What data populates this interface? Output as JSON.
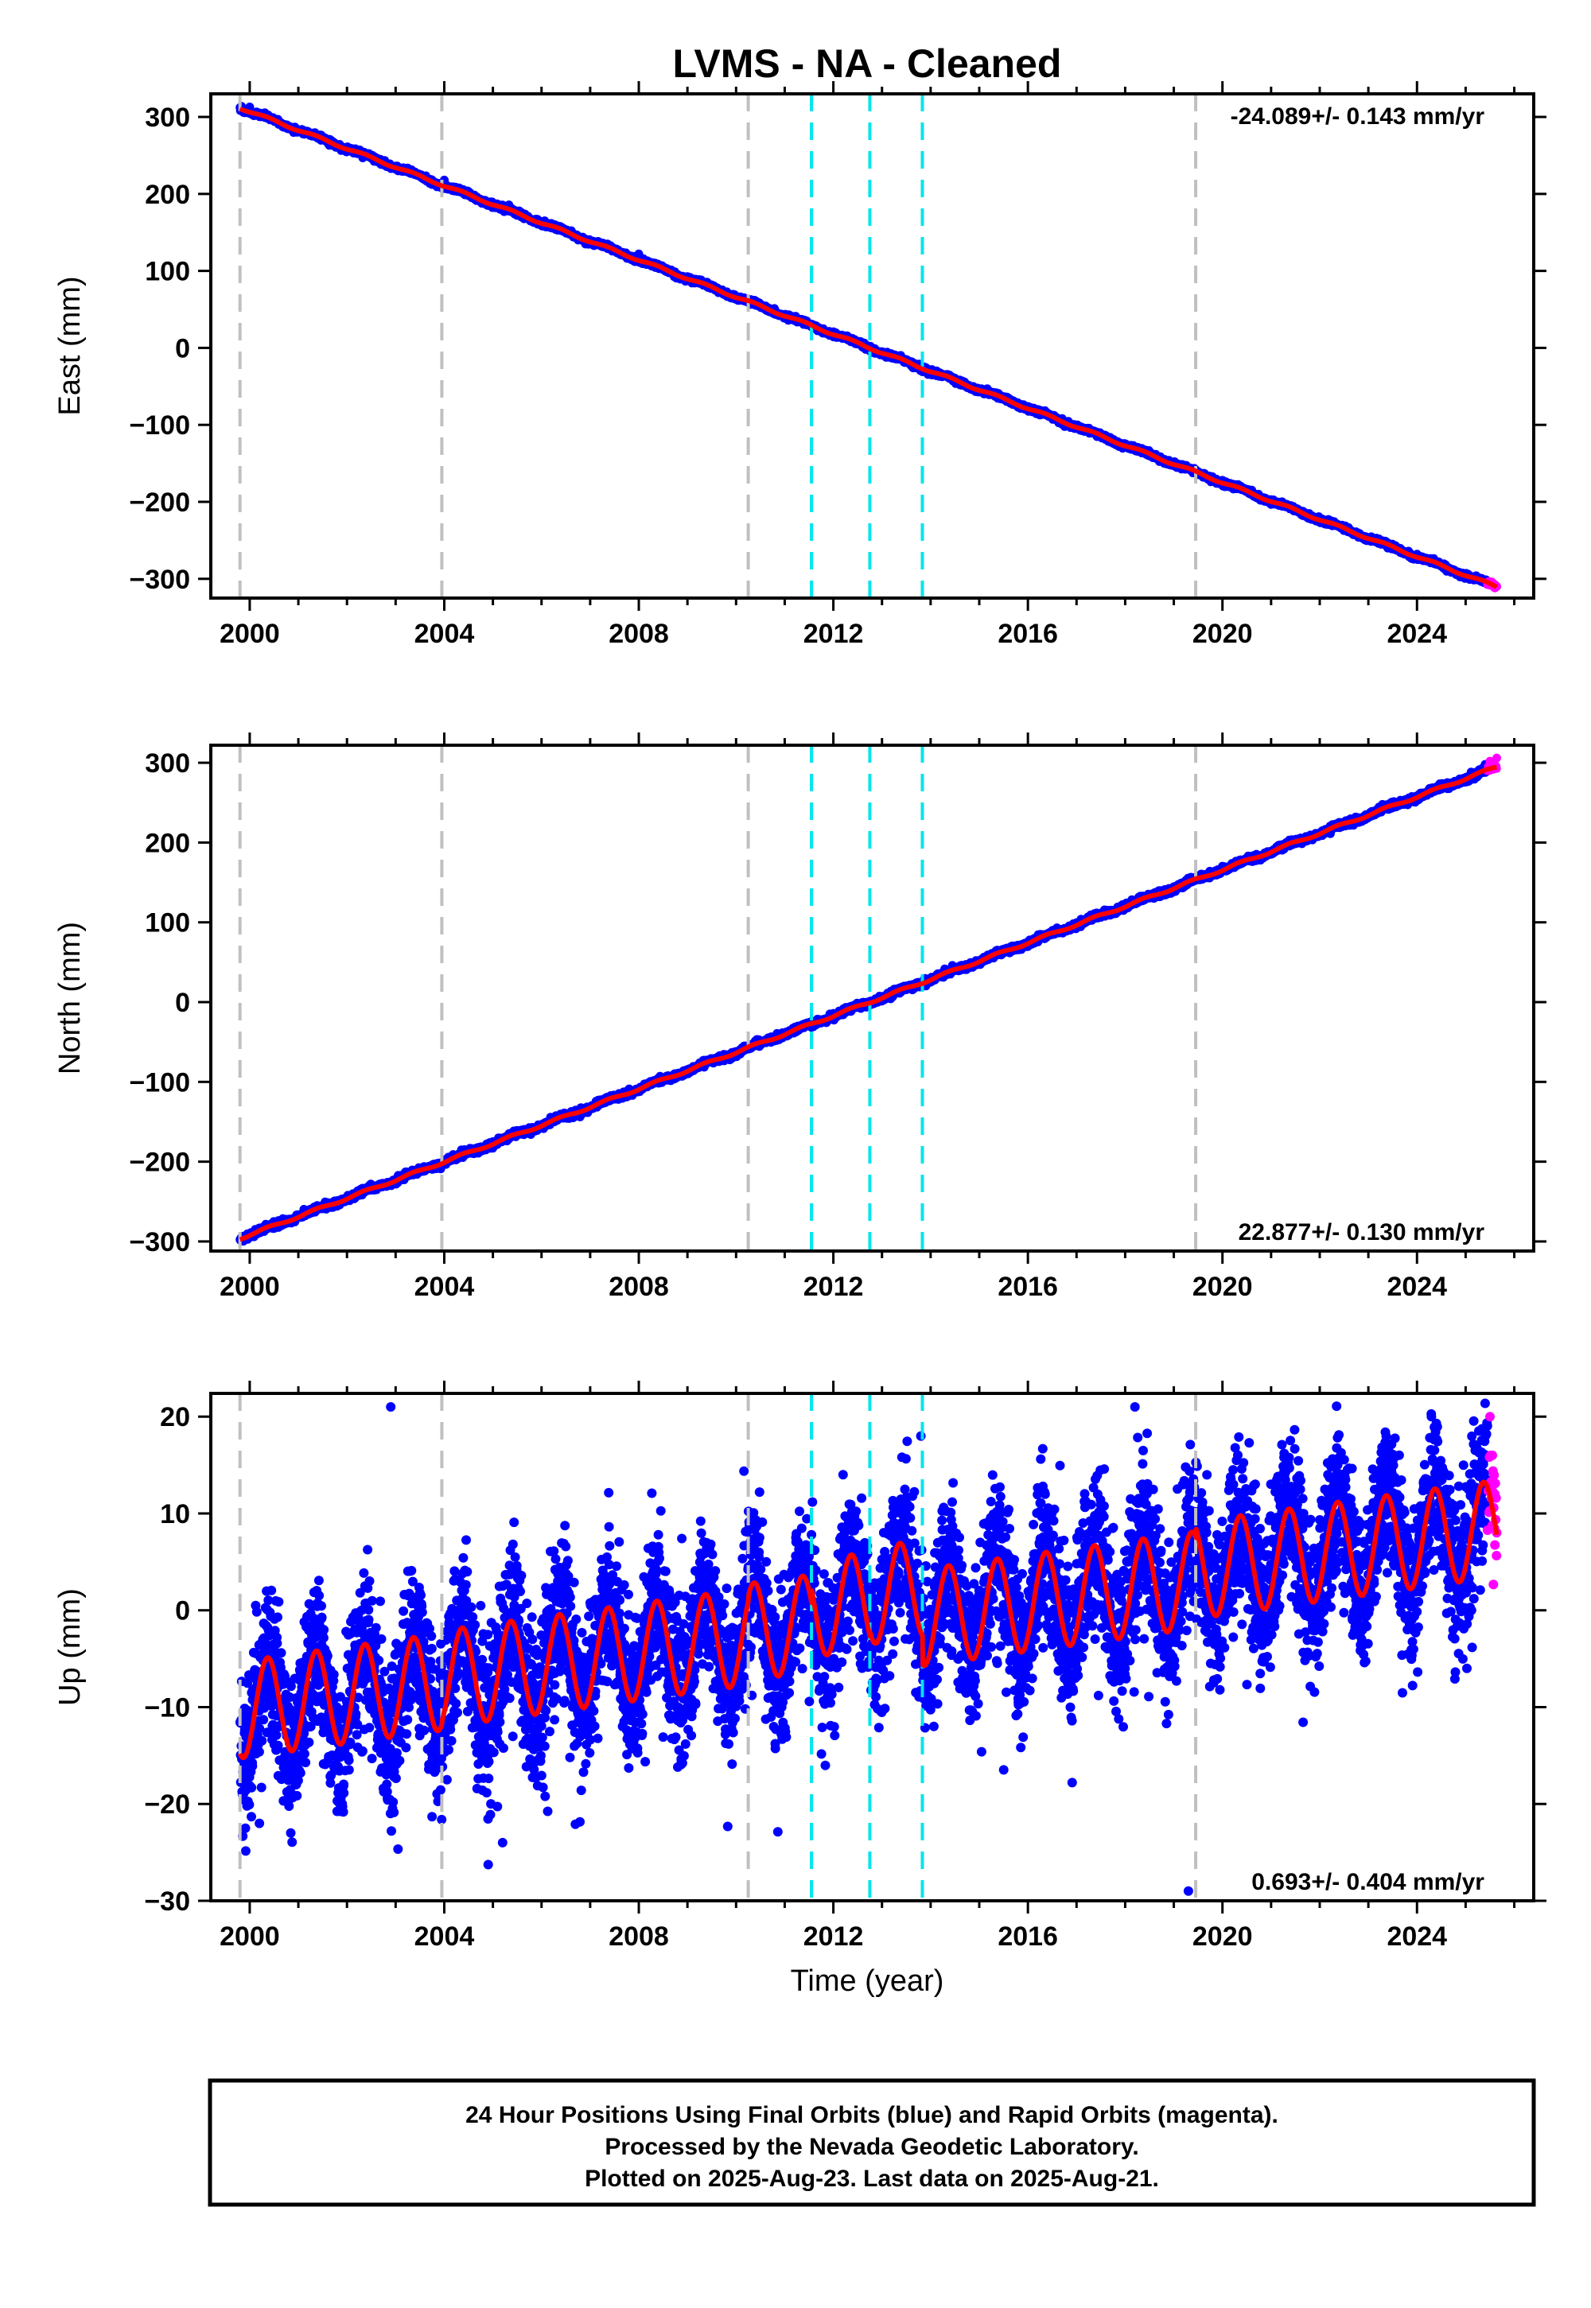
{
  "title": "LVMS  - NA - Cleaned",
  "xlabel": "Time (year)",
  "note_lines": [
    "24 Hour Positions Using Final Orbits (blue) and Rapid Orbits (magenta).",
    "Processed by the Nevada Geodetic Laboratory.",
    "Plotted on 2025-Aug-23. Last data on 2025-Aug-21."
  ],
  "colors": {
    "final_points": "#0000ff",
    "rapid_points": "#ff00ff",
    "model": "#ff0000",
    "gray_lines": "#c0c0c0",
    "cyan_lines": "#00e5ee"
  },
  "chart_data": [
    {
      "type": "scatter",
      "name": "east",
      "ylabel": "East (mm)",
      "rate_label": "-24.089+/- 0.143 mm/yr",
      "rate_position": "top-right",
      "xlim": [
        1999.2,
        2026.4
      ],
      "ylim": [
        -325,
        330
      ],
      "x_ticks": [
        2000,
        2004,
        2008,
        2012,
        2016,
        2020,
        2024
      ],
      "y_ticks": [
        -300,
        -200,
        -100,
        0,
        100,
        200,
        300
      ],
      "data_start": 1999.8,
      "data_end": 2025.64,
      "rapid_start": 2025.45,
      "reference_epoch": 2012.75,
      "trend": {
        "value_at_reference": 0,
        "rate_mm_per_yr": -24.089
      },
      "annual_amplitude_mm": 1.5,
      "scatter_sd_mm": 1.5,
      "series": [
        {
          "name": "final orbits",
          "points_sampled": [
            [
              2000,
              313
            ],
            [
              2004,
              218
            ],
            [
              2008,
              122
            ],
            [
              2012,
              21
            ],
            [
              2016,
              -76
            ],
            [
              2020,
              -172
            ],
            [
              2024,
              -268
            ],
            [
              2025.4,
              -303
            ]
          ]
        },
        {
          "name": "rapid orbits",
          "points_sampled": [
            [
              2025.5,
              -306
            ],
            [
              2025.64,
              -310
            ]
          ]
        }
      ],
      "gray_lines": [
        1999.8,
        2003.95,
        2010.25,
        2019.45
      ],
      "cyan_lines": [
        2011.55,
        2012.75,
        2013.83
      ]
    },
    {
      "type": "scatter",
      "name": "north",
      "ylabel": "North (mm)",
      "rate_label": "22.877+/- 0.130 mm/yr",
      "rate_position": "bottom-right",
      "xlim": [
        1999.2,
        2026.4
      ],
      "ylim": [
        -312,
        322
      ],
      "x_ticks": [
        2000,
        2004,
        2008,
        2012,
        2016,
        2020,
        2024
      ],
      "y_ticks": [
        -300,
        -200,
        -100,
        0,
        100,
        200,
        300
      ],
      "data_start": 1999.8,
      "data_end": 2025.64,
      "rapid_start": 2025.45,
      "reference_epoch": 2012.75,
      "trend": {
        "value_at_reference": 0,
        "rate_mm_per_yr": 22.877
      },
      "annual_amplitude_mm": 1.5,
      "scatter_sd_mm": 1.8,
      "series": [
        {
          "name": "final orbits",
          "points_sampled": [
            [
              2000,
              -295
            ],
            [
              2004,
              -201
            ],
            [
              2008,
              -110
            ],
            [
              2012,
              -19
            ],
            [
              2016,
              74
            ],
            [
              2020,
              165
            ],
            [
              2024,
              256
            ],
            [
              2025.4,
              298
            ]
          ]
        },
        {
          "name": "rapid orbits",
          "points_sampled": [
            [
              2025.5,
              302
            ],
            [
              2025.64,
              306
            ]
          ]
        }
      ],
      "gray_lines": [
        1999.8,
        2003.95,
        2010.25,
        2019.45
      ],
      "cyan_lines": [
        2011.55,
        2012.75,
        2013.83
      ]
    },
    {
      "type": "scatter",
      "name": "up",
      "ylabel": "Up (mm)",
      "rate_label": "0.693+/- 0.404 mm/yr",
      "rate_position": "bottom-right",
      "xlim": [
        1999.2,
        2026.4
      ],
      "ylim": [
        -30,
        22.4
      ],
      "x_ticks": [
        2000,
        2004,
        2008,
        2012,
        2016,
        2020,
        2024
      ],
      "y_ticks": [
        -30,
        -20,
        -10,
        0,
        10,
        20
      ],
      "data_start": 1999.8,
      "data_end": 2025.64,
      "rapid_start": 2025.45,
      "reference_epoch": 2012.75,
      "trend": {
        "value_at_reference": 0,
        "rate_mm_per_yr": 0.693
      },
      "annual_amplitude_mm": 5,
      "scatter_sd_mm": 3.8,
      "model_segments": [
        {
          "from": 1999.8,
          "to": 2003.95,
          "offset": -1.3
        },
        {
          "from": 2003.95,
          "to": 2010.25,
          "offset": -1.0
        },
        {
          "from": 2010.25,
          "to": 2011.55,
          "offset": -0.5
        },
        {
          "from": 2011.55,
          "to": 2012.75,
          "offset": 1.0
        },
        {
          "from": 2012.75,
          "to": 2013.83,
          "offset": 1.5
        },
        {
          "from": 2013.83,
          "to": 2019.45,
          "offset": -1.5
        },
        {
          "from": 2019.45,
          "to": 2025.64,
          "offset": -0.5
        }
      ],
      "series": [
        {
          "name": "final orbits",
          "points_sampled": [
            [
              2000.2,
              -22
            ],
            [
              2002.9,
              21
            ],
            [
              2005.2,
              -24
            ],
            [
              2012.2,
              14
            ],
            [
              2013.8,
              18
            ],
            [
              2018.2,
              21
            ],
            [
              2019.3,
              -29
            ]
          ]
        },
        {
          "name": "rapid orbits",
          "points_sampled": [
            [
              2025.5,
              20
            ],
            [
              2025.55,
              16
            ],
            [
              2025.6,
              12
            ],
            [
              2025.64,
              8
            ]
          ]
        }
      ],
      "gray_lines": [
        1999.8,
        2003.95,
        2010.25,
        2019.45
      ],
      "cyan_lines": [
        2011.55,
        2012.75,
        2013.83
      ]
    }
  ]
}
